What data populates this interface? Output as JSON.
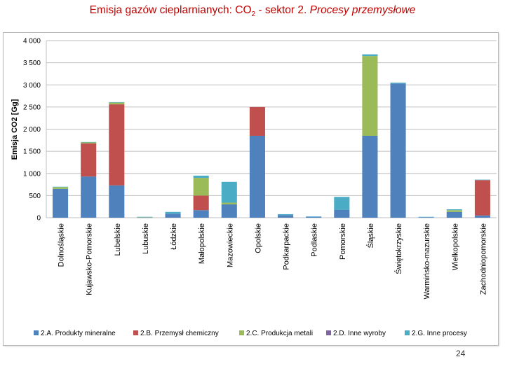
{
  "title": {
    "part1": "Emisja gazów cieplarnianych: CO",
    "sub": "2",
    "part2": " - sektor 2. ",
    "part3": "Procesy przemysłowe"
  },
  "page_number": "24",
  "chart_data": {
    "type": "bar",
    "stacked": true,
    "ylabel": "Emisja CO2 [Gg]",
    "ylim": [
      0,
      4000
    ],
    "yticks": [
      0,
      500,
      1000,
      1500,
      2000,
      2500,
      3000,
      3500,
      4000
    ],
    "ytick_labels": [
      "0",
      "500",
      "1 000",
      "1 500",
      "2 000",
      "2 500",
      "3 000",
      "3 500",
      "4 000"
    ],
    "grid": true,
    "legend_position": "bottom",
    "categories": [
      "Dolnośląskie",
      "Kujawsko-Pomorskie",
      "Lubelskie",
      "Lubuskie",
      "Łódzkie",
      "Małopolskie",
      "Mazowieckie",
      "Opolskie",
      "Podkarpackie",
      "Podlaskie",
      "Pomorskie",
      "Śląskie",
      "Świętokrzyskie",
      "Warmińsko-mazurskie",
      "Wielkopolskie",
      "Zachodniopomorskie"
    ],
    "series": [
      {
        "name": "2.A. Produkty mineralne",
        "color": "#4f81bd",
        "values": [
          650,
          930,
          730,
          5,
          90,
          170,
          300,
          1850,
          60,
          20,
          180,
          1850,
          3030,
          10,
          130,
          50
        ]
      },
      {
        "name": "2.B. Przemysł chemiczny",
        "color": "#c0504d",
        "values": [
          0,
          750,
          1830,
          0,
          0,
          330,
          0,
          650,
          0,
          0,
          0,
          0,
          0,
          0,
          0,
          800
        ]
      },
      {
        "name": "2.C. Produkcja metali",
        "color": "#9bbb59",
        "values": [
          40,
          20,
          40,
          10,
          0,
          400,
          40,
          0,
          0,
          0,
          0,
          1800,
          0,
          0,
          40,
          0
        ]
      },
      {
        "name": "2.D. Inne wyroby",
        "color": "#8064a2",
        "values": [
          0,
          0,
          0,
          0,
          0,
          0,
          0,
          0,
          0,
          0,
          0,
          0,
          0,
          0,
          0,
          0
        ]
      },
      {
        "name": "2.G. Inne procesy",
        "color": "#4bacc6",
        "values": [
          10,
          10,
          10,
          5,
          40,
          50,
          470,
          0,
          20,
          10,
          290,
          40,
          20,
          10,
          20,
          10
        ]
      }
    ]
  }
}
